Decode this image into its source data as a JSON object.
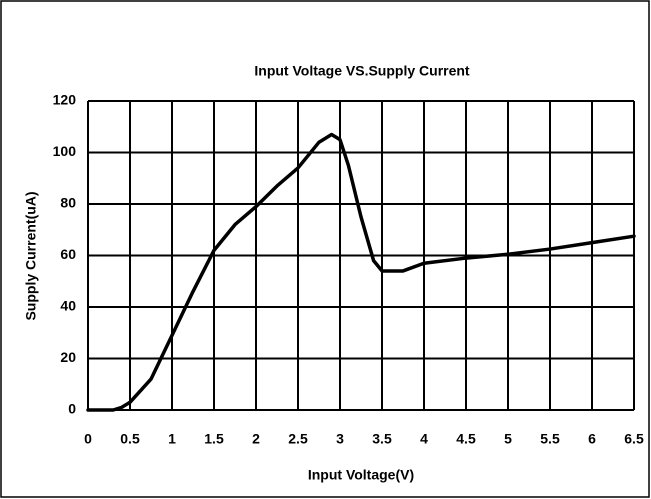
{
  "chart_data": {
    "type": "line",
    "title": "Input Voltage VS.Supply Current",
    "xlabel": "Input Voltage(V)",
    "ylabel": "Supply Current(uA)",
    "x": [
      0,
      0.3,
      0.4,
      0.5,
      0.75,
      1,
      1.25,
      1.5,
      1.75,
      2,
      2.25,
      2.5,
      2.75,
      2.9,
      3,
      3.1,
      3.25,
      3.4,
      3.5,
      3.75,
      4,
      4.5,
      5,
      5.5,
      6,
      6.5
    ],
    "series": [
      {
        "name": "Supply Current",
        "color": "#000000",
        "values": [
          0,
          0,
          1,
          3,
          12,
          29,
          46,
          62,
          72,
          79,
          87,
          94,
          104,
          107,
          105,
          95,
          75,
          58,
          54,
          54,
          57,
          59,
          60.5,
          62.5,
          65,
          67.5
        ]
      }
    ],
    "xlim": [
      0,
      6.5
    ],
    "xticks": [
      0,
      0.5,
      1,
      1.5,
      2,
      2.5,
      3,
      3.5,
      4,
      4.5,
      5,
      5.5,
      6,
      6.5
    ],
    "ylim": [
      0,
      120
    ],
    "yticks": [
      0,
      20,
      40,
      60,
      80,
      100,
      120
    ],
    "grid": true
  }
}
